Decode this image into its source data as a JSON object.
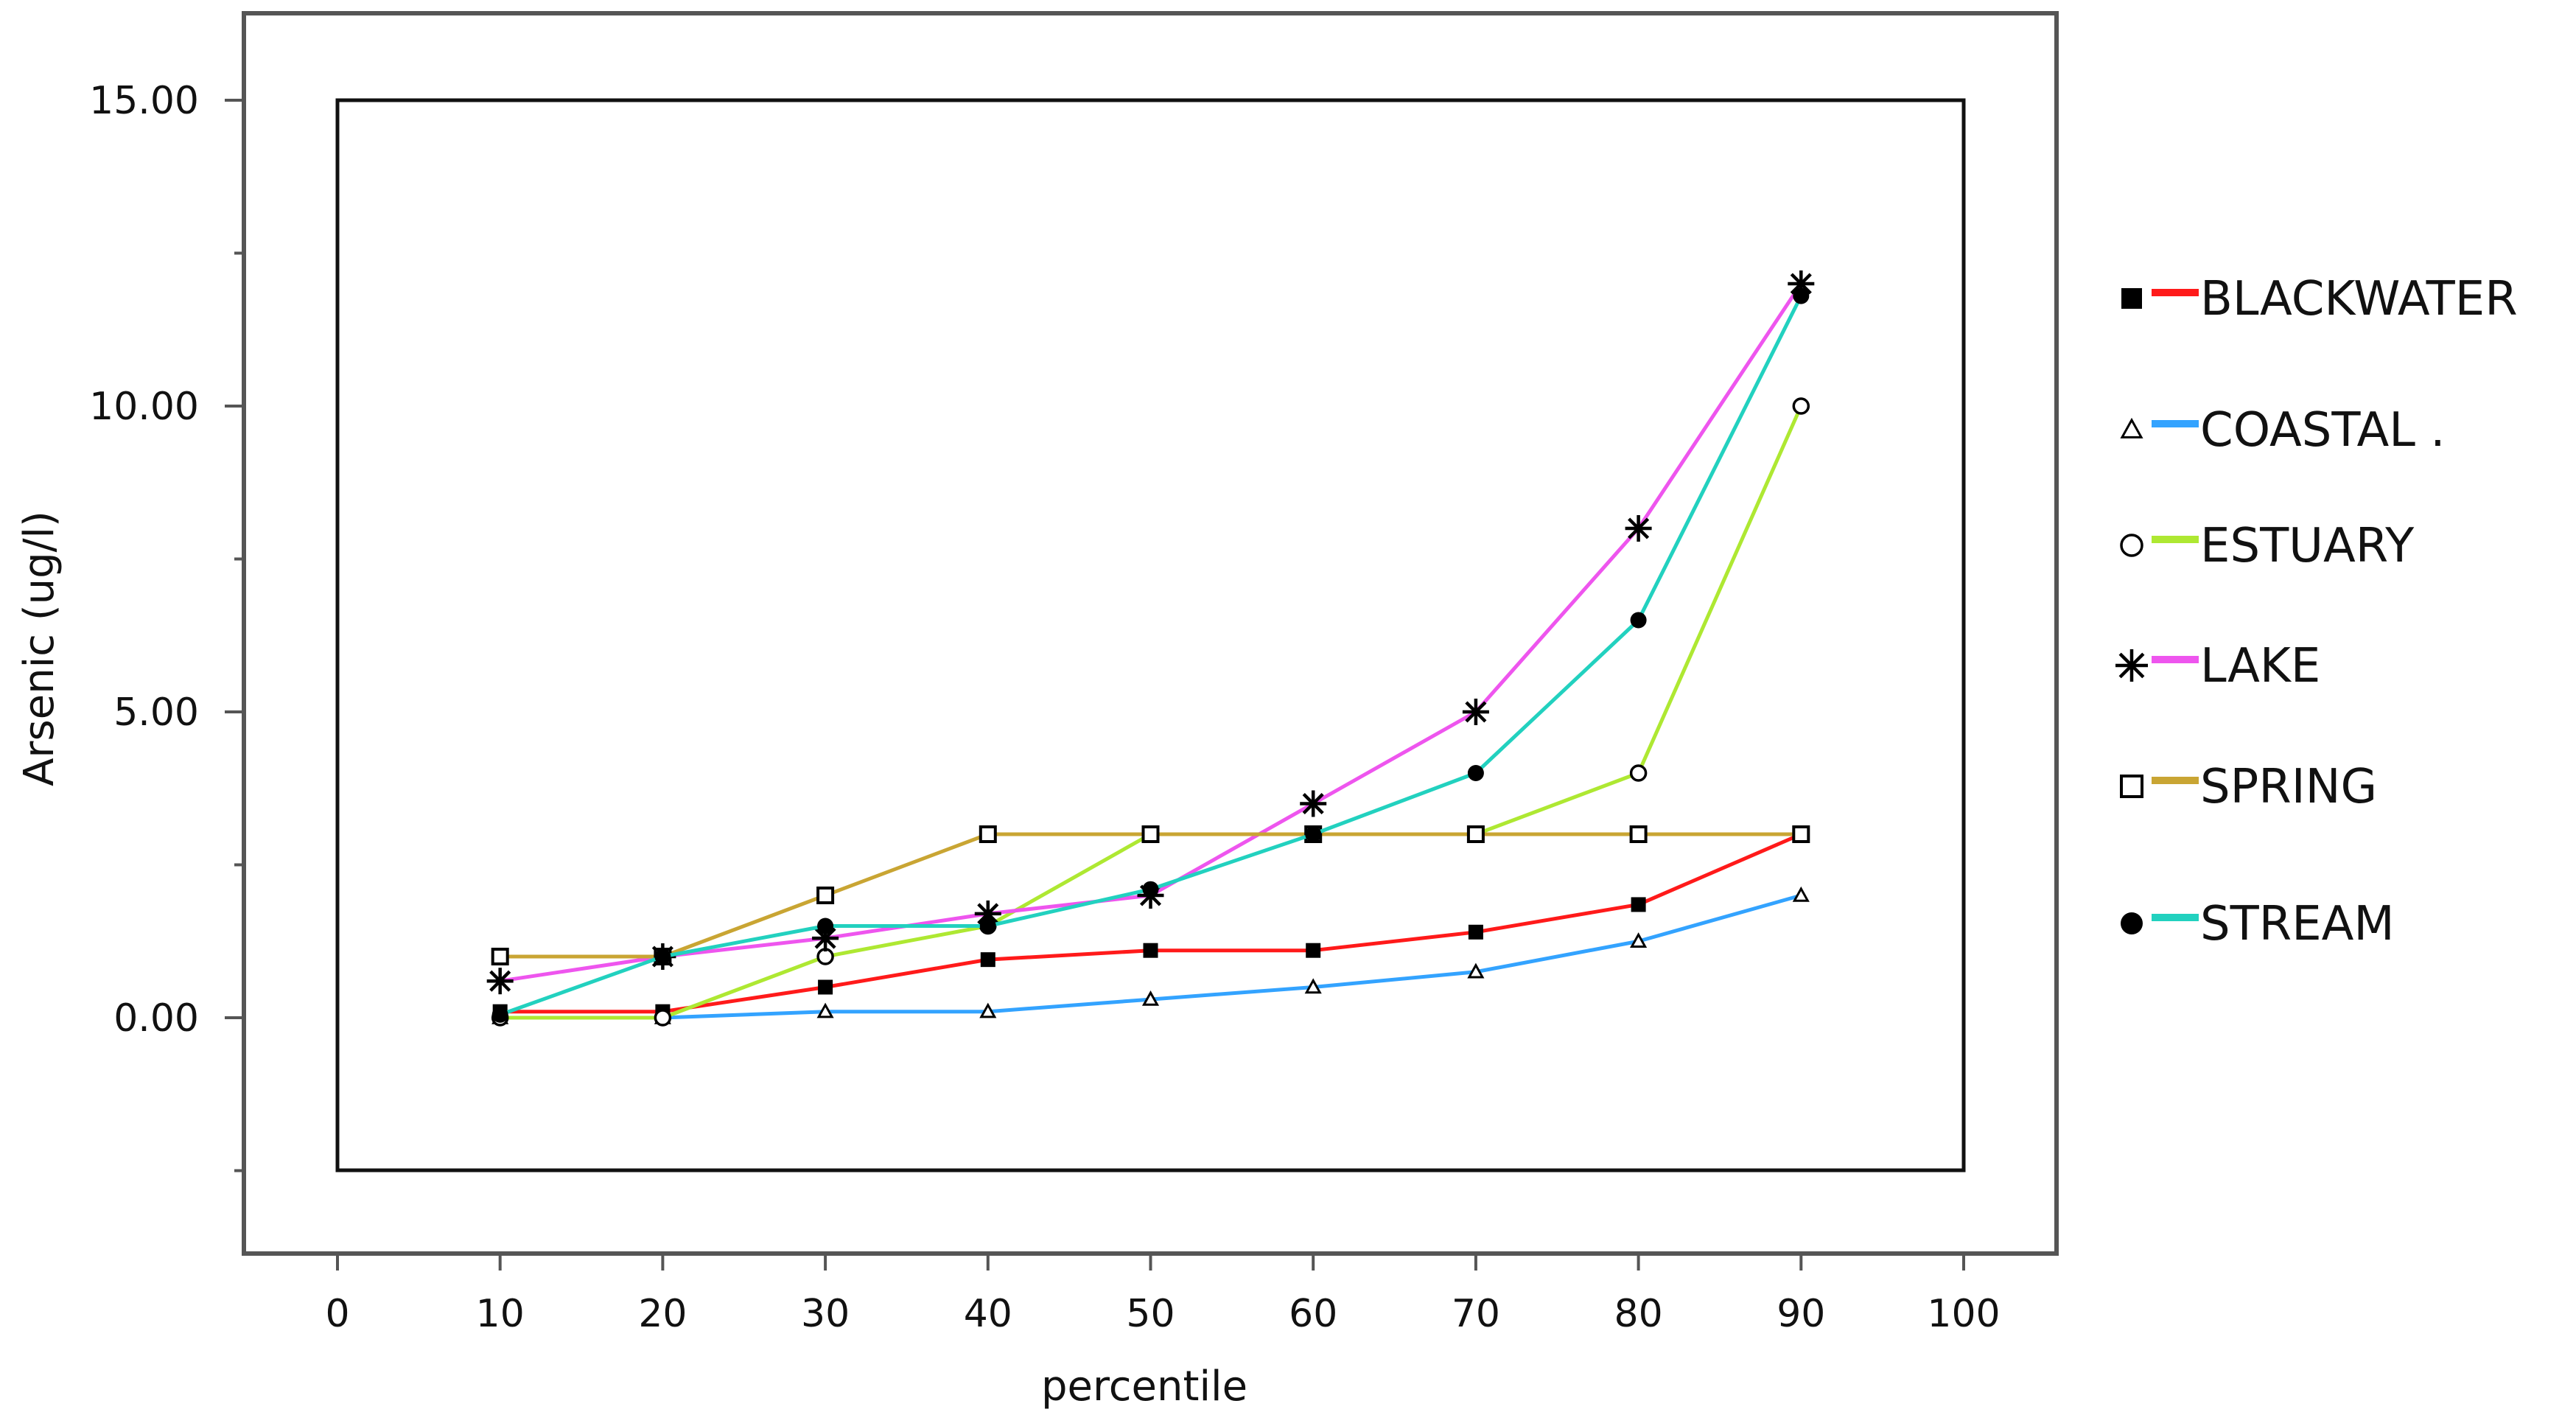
{
  "chart_data": {
    "type": "line",
    "xlabel": "percentile",
    "ylabel": "Arsenic (ug/l)",
    "xlim": [
      0,
      100
    ],
    "ylim": [
      -2.5,
      15
    ],
    "x_ticks": [
      "0",
      "10",
      "20",
      "30",
      "40",
      "50",
      "60",
      "70",
      "80",
      "90",
      "100"
    ],
    "y_ticks": [
      "15.00",
      "10.00",
      "5.00",
      "0.00"
    ],
    "x": [
      10,
      20,
      30,
      40,
      50,
      60,
      70,
      80,
      90
    ],
    "grid": false,
    "legend_position": "right",
    "series": [
      {
        "name": "BLACKWATER",
        "color": "#ff1a1a",
        "marker": "filled-square",
        "values": [
          0.1,
          0.1,
          0.5,
          0.95,
          1.1,
          1.1,
          1.4,
          1.85,
          3.0
        ]
      },
      {
        "name": "COASTAL",
        "color": "#33a3ff",
        "marker": "open-triangle",
        "values": [
          0.0,
          0.0,
          0.1,
          0.1,
          0.3,
          0.5,
          0.75,
          1.25,
          2.0
        ]
      },
      {
        "name": "ESTUARY",
        "color": "#aee832",
        "marker": "open-circle",
        "values": [
          0.0,
          0.0,
          1.0,
          1.5,
          3.0,
          3.0,
          3.0,
          4.0,
          10.0
        ]
      },
      {
        "name": "LAKE",
        "color": "#ee55ee",
        "marker": "asterisk",
        "values": [
          0.6,
          1.0,
          1.3,
          1.7,
          2.0,
          3.5,
          5.0,
          8.0,
          12.0
        ]
      },
      {
        "name": "SPRING",
        "color": "#c9a533",
        "marker": "open-square",
        "values": [
          1.0,
          1.0,
          2.0,
          3.0,
          3.0,
          3.0,
          3.0,
          3.0,
          3.0
        ]
      },
      {
        "name": "STREAM",
        "color": "#22d1bf",
        "marker": "filled-circle",
        "values": [
          0.05,
          1.0,
          1.5,
          1.5,
          2.1,
          3.0,
          4.0,
          6.5,
          11.8
        ]
      }
    ],
    "legend_labels": [
      "BLACKWATER",
      "COASTAL .",
      "ESTUARY",
      "LAKE",
      "SPRING",
      "STREAM"
    ]
  }
}
